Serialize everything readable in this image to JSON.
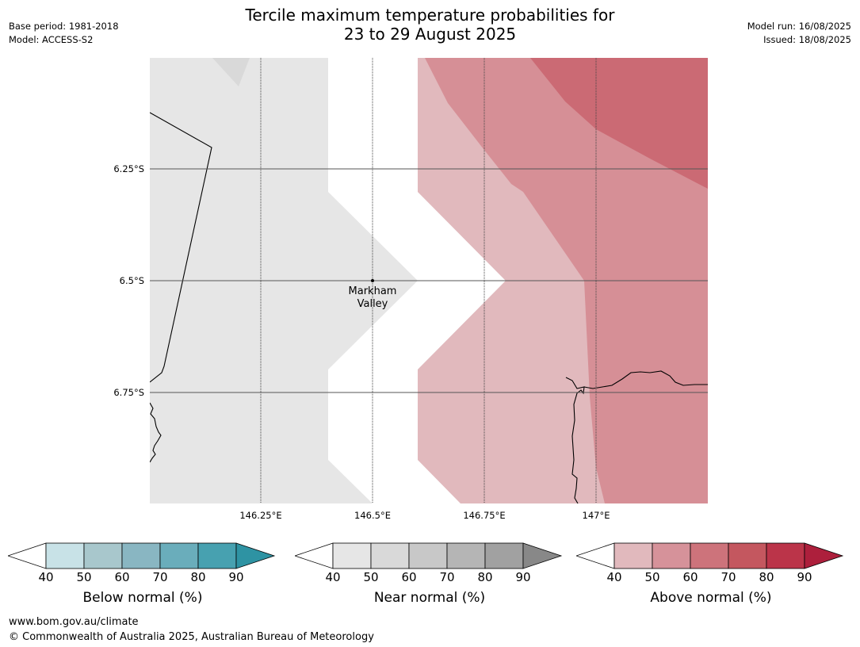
{
  "header": {
    "title_line1": "Tercile maximum temperature probabilities for",
    "title_line2": "23 to 29 August 2025",
    "base_period": "Base period: 1981-2018",
    "model": "Model: ACCESS-S2",
    "model_run": "Model run: 16/08/2025",
    "issued": "Issued: 18/08/2025"
  },
  "map": {
    "lat_labels": [
      "6.25°S",
      "6.5°S",
      "6.75°S"
    ],
    "lon_labels": [
      "146.25°E",
      "146.5°E",
      "146.75°E",
      "147°E"
    ],
    "location": {
      "line1": "Markham",
      "line2": "Valley"
    },
    "categories": {
      "near_normal_40_50": "#e6e6e6",
      "near_normal_50_60": "#d9d9d9",
      "above_normal_40_50": "#e1b9bd",
      "above_normal_50_60": "#d68f96",
      "above_normal_60_70": "#cb6a74",
      "no_dominant": "#ffffff"
    }
  },
  "legends": [
    {
      "caption": "Below normal (%)",
      "ticks": [
        "40",
        "50",
        "60",
        "70",
        "80",
        "90"
      ],
      "colors": [
        "#c8e2e7",
        "#a8c7cc",
        "#89b6c2",
        "#6aadbb",
        "#47a1b0",
        "#2e93a3"
      ]
    },
    {
      "caption": "Near normal (%)",
      "ticks": [
        "40",
        "50",
        "60",
        "70",
        "80",
        "90"
      ],
      "colors": [
        "#e6e6e6",
        "#d9d9d9",
        "#c8c8c8",
        "#b5b5b5",
        "#a1a1a1",
        "#888888"
      ]
    },
    {
      "caption": "Above normal (%)",
      "ticks": [
        "40",
        "50",
        "60",
        "70",
        "80",
        "90"
      ],
      "colors": [
        "#e1b9bd",
        "#d6929a",
        "#cd737b",
        "#c4575f",
        "#bb3449",
        "#ad1f3c"
      ]
    }
  ],
  "footer": {
    "url": "www.bom.gov.au/climate",
    "copyright": "© Commonwealth of Australia 2025, Australian Bureau of Meteorology"
  }
}
